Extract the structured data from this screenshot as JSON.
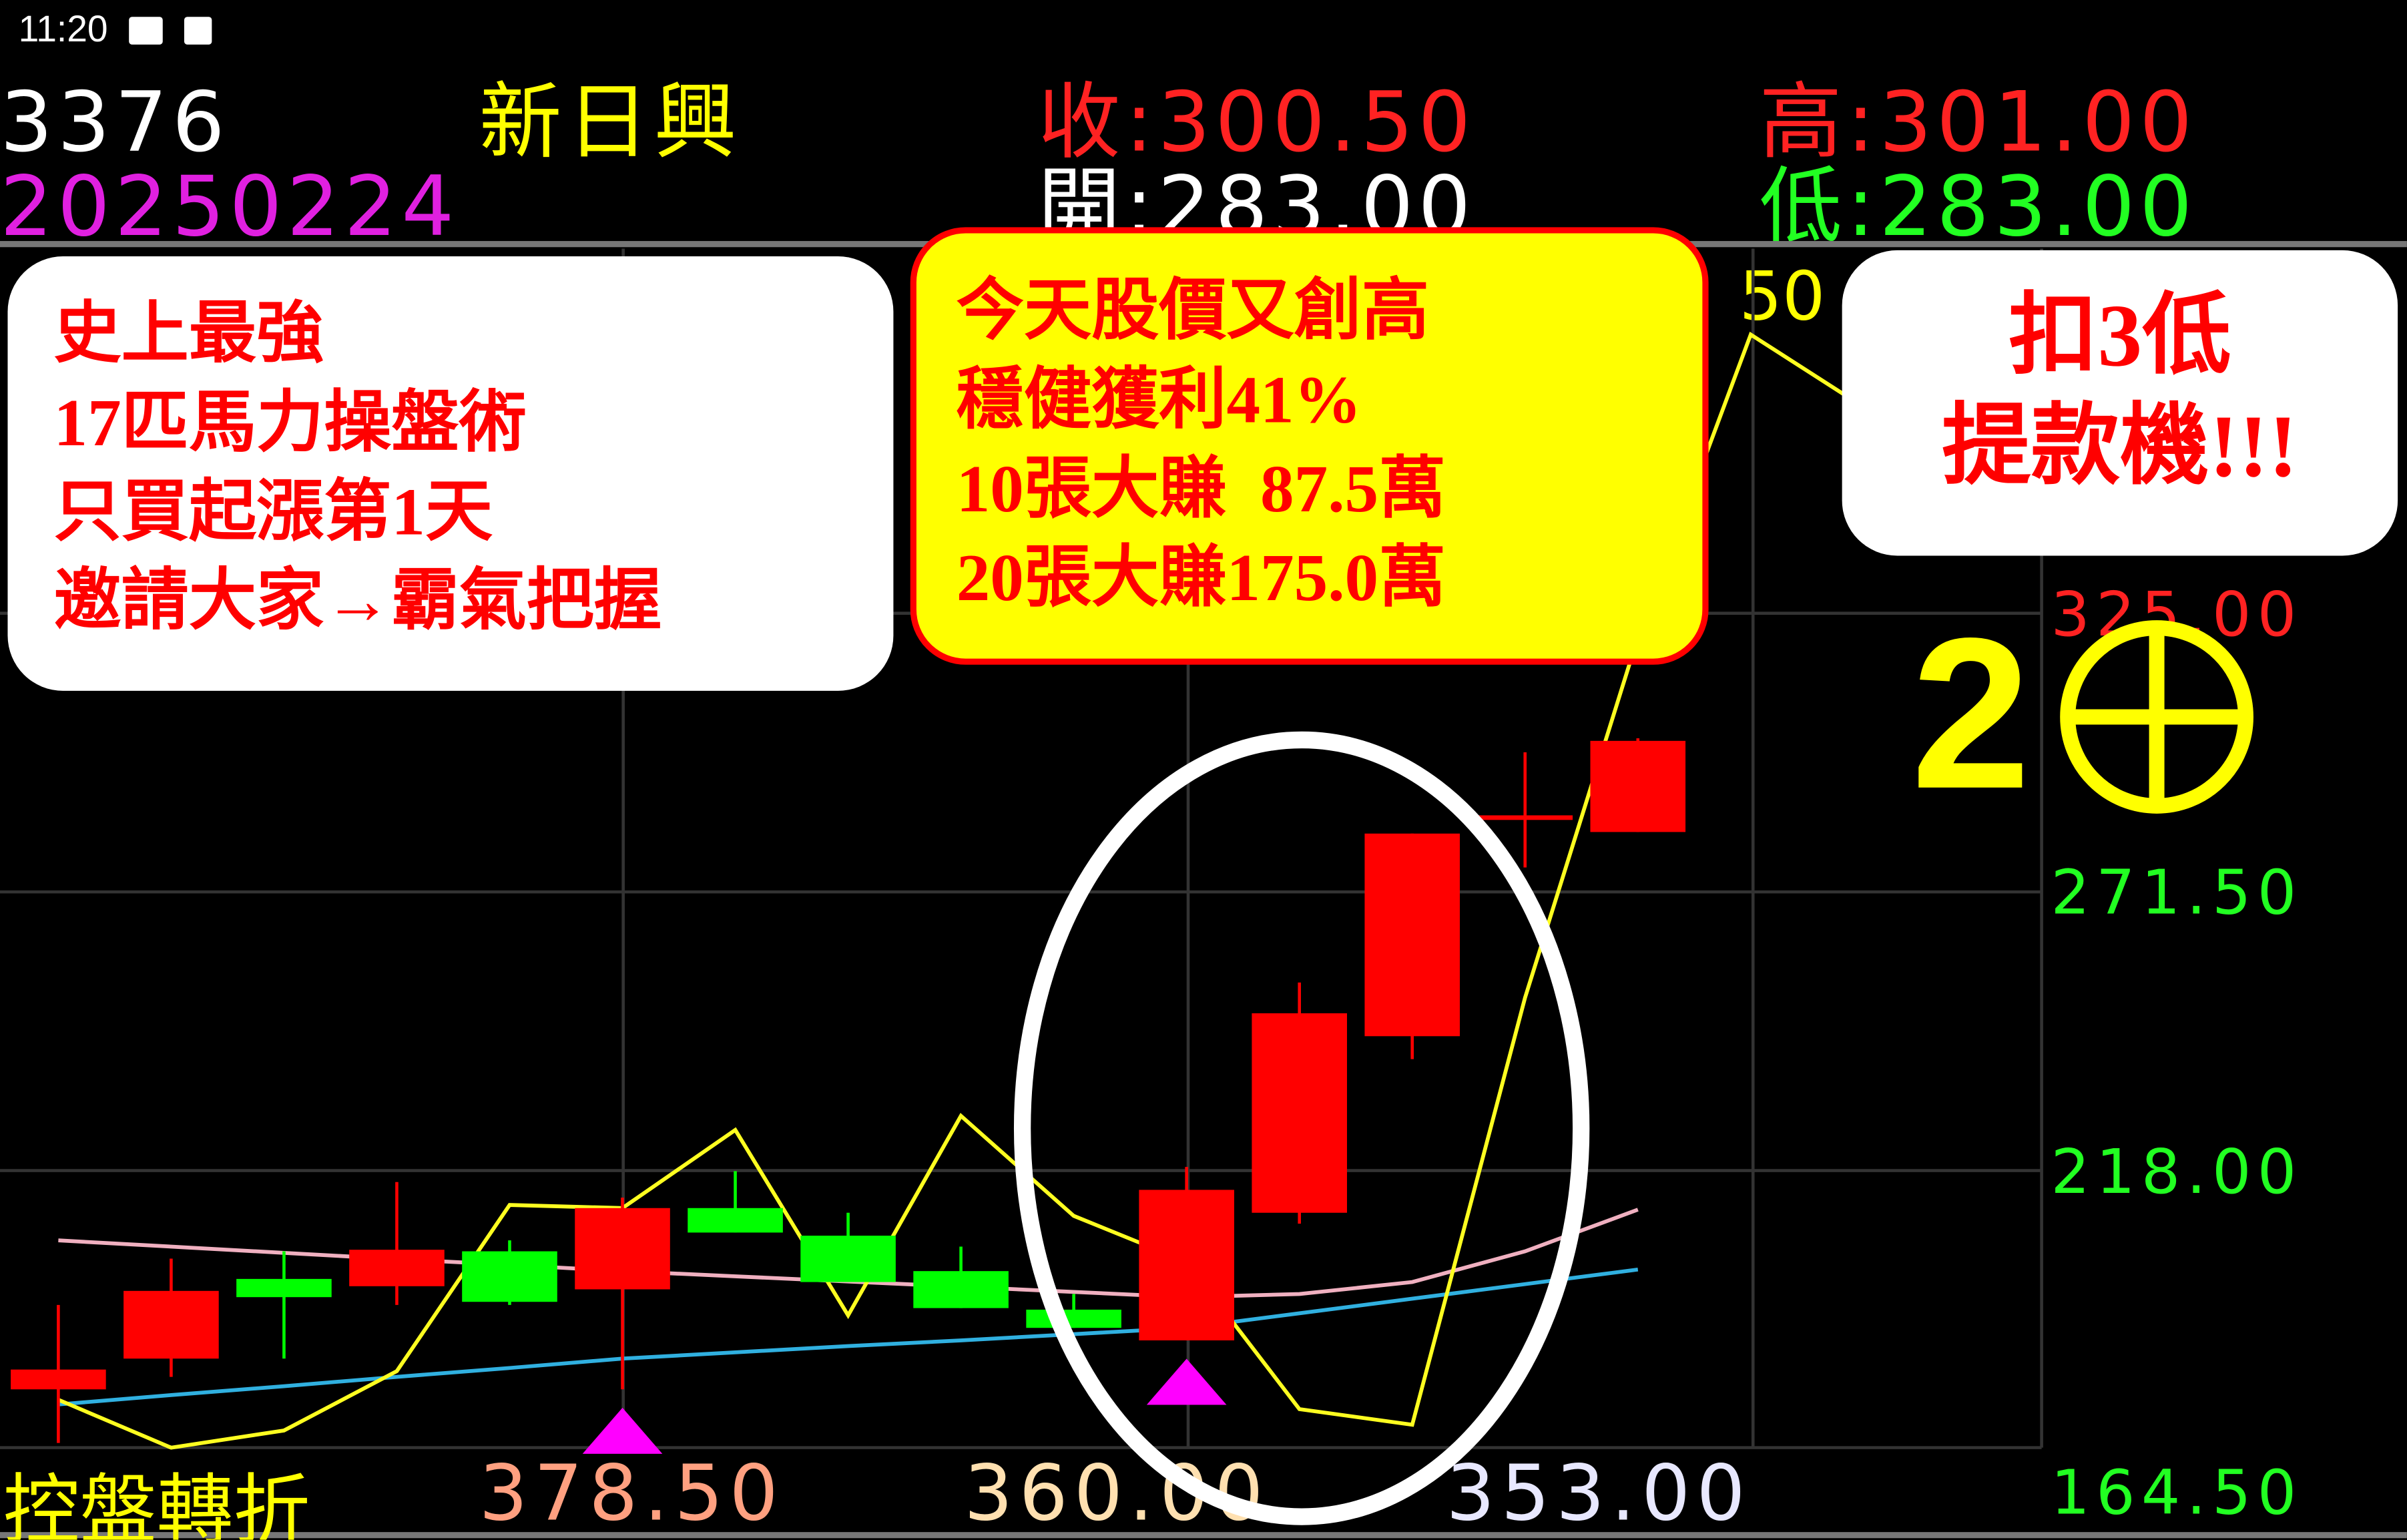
{
  "status_bar": {
    "time": "11:20",
    "icons": [
      "image-icon",
      "font-icon"
    ]
  },
  "header": {
    "code": "3376",
    "name": "新日興",
    "close": "收:300.50",
    "high": "高:301.00",
    "date": "20250224",
    "open": "開:283.00",
    "low": "低:283.00",
    "colors": {
      "code": "#ffffff",
      "name": "#ffff00",
      "close": "#ff2020",
      "high": "#ff2020",
      "date": "#e020e0",
      "open": "#ffffff",
      "low": "#20ff20"
    }
  },
  "chart_data": {
    "type": "candlestick",
    "y_axis_labels": [
      "325.00",
      "271.50",
      "218.00",
      "164.50"
    ],
    "y_ticks": [
      325.0,
      271.5,
      218.0,
      164.5
    ],
    "ylim": [
      164.5,
      378.5
    ],
    "grid": true,
    "candles": [
      {
        "o": 176.0,
        "h": 192.2,
        "l": 165.7,
        "c": 179.8
      },
      {
        "o": 181.9,
        "h": 201.1,
        "l": 178.4,
        "c": 194.9
      },
      {
        "o": 197.2,
        "h": 202.5,
        "l": 181.9,
        "c": 193.7
      },
      {
        "o": 195.8,
        "h": 215.8,
        "l": 192.2,
        "c": 202.8
      },
      {
        "o": 202.5,
        "h": 204.6,
        "l": 192.2,
        "c": 192.8
      },
      {
        "o": 195.2,
        "h": 212.8,
        "l": 176.0,
        "c": 210.8
      },
      {
        "o": 210.8,
        "h": 217.9,
        "l": 206.1,
        "c": 206.1
      },
      {
        "o": 205.5,
        "h": 209.9,
        "l": 196.6,
        "c": 196.6
      },
      {
        "o": 198.7,
        "h": 203.4,
        "l": 191.6,
        "c": 191.6
      },
      {
        "o": 191.3,
        "h": 194.3,
        "l": 187.8,
        "c": 187.8
      },
      {
        "o": 185.4,
        "h": 218.7,
        "l": 185.4,
        "c": 214.3
      },
      {
        "o": 209.9,
        "h": 254.1,
        "l": 207.8,
        "c": 248.2
      },
      {
        "o": 243.8,
        "h": 282.7,
        "l": 239.4,
        "c": 282.7
      },
      {
        "o": 286.2,
        "h": 298.3,
        "l": 276.2,
        "c": 286.2
      },
      {
        "o": 283.0,
        "h": 301.0,
        "l": 283.0,
        "c": 300.5
      }
    ],
    "up_color": "#ff0000",
    "down_color": "#00ff00",
    "lines": [
      {
        "color": "#ffff20",
        "values": [
          174.0,
          164.8,
          168.1,
          179.5,
          211.4,
          210.8,
          225.8,
          190.2,
          228.5,
          209.3,
          200.5,
          172.2,
          169.2,
          251.2,
          320.4,
          378.5,
          364.6
        ]
      },
      {
        "color": "#f0b0c0",
        "values": [
          204.6,
          203.4,
          202.2,
          201.0,
          199.9,
          198.7,
          197.7,
          196.7,
          195.7,
          194.7,
          193.7,
          194.3,
          196.6,
          202.5,
          210.5
        ]
      },
      {
        "color": "#30b0e0",
        "values": [
          173.1,
          174.9,
          176.6,
          178.4,
          180.1,
          181.9,
          183.1,
          184.3,
          185.4,
          186.6,
          187.8,
          190.6,
          193.4,
          196.2,
          199.0
        ]
      }
    ],
    "signal_markers": [
      5,
      10
    ],
    "marker_color": "#ff00ff",
    "top_fragment": "50"
  },
  "bottom_bar": {
    "label": "控盤轉折",
    "values": [
      "378.50",
      "360.00",
      "353.00"
    ],
    "colors": [
      "#ffa080",
      "#ffe0b0",
      "#e8e8ff"
    ]
  },
  "callouts": {
    "left": [
      "史上最強",
      "17匹馬力操盤術",
      "只買起漲第1天",
      "邀請大家→霸氣把握"
    ],
    "center": [
      "今天股價又創高",
      "穩健獲利41%",
      "10張大賺  87.5萬",
      "20張大賺175.0萬"
    ],
    "right": [
      "扣3低",
      "提款機!!!"
    ],
    "badge": "2"
  }
}
